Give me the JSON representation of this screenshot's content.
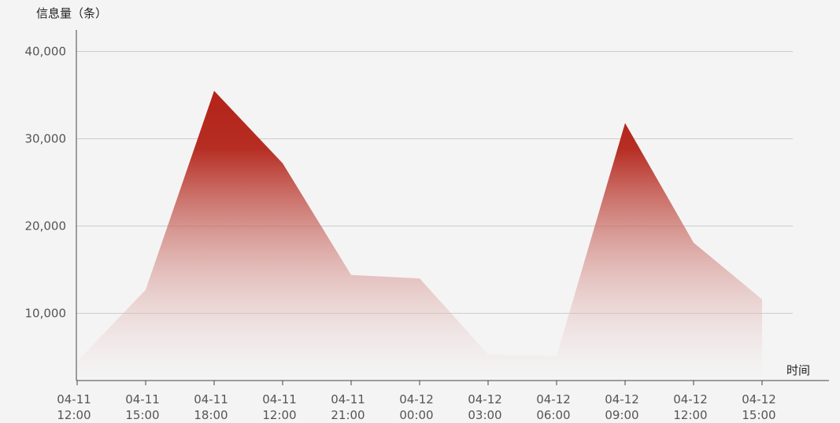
{
  "chart_data": {
    "type": "area",
    "title": "",
    "ylabel": "信息量（条）",
    "xlabel": "时间",
    "categories": [
      [
        "04-11",
        "12:00"
      ],
      [
        "04-11",
        "15:00"
      ],
      [
        "04-11",
        "18:00"
      ],
      [
        "04-11",
        "12:00"
      ],
      [
        "04-11",
        "21:00"
      ],
      [
        "04-12",
        "00:00"
      ],
      [
        "04-12",
        "03:00"
      ],
      [
        "04-12",
        "06:00"
      ],
      [
        "04-12",
        "09:00"
      ],
      [
        "04-12",
        "12:00"
      ],
      [
        "04-12",
        "15:00"
      ]
    ],
    "series": [
      {
        "values": [
          4500,
          12700,
          35500,
          27200,
          14400,
          14000,
          5300,
          5100,
          31800,
          18100,
          11600
        ]
      }
    ],
    "ylim": [
      2300,
      42300
    ],
    "yticks": [
      10000,
      20000,
      30000,
      40000
    ],
    "ytick_labels": [
      "10,000",
      "20,000",
      "30,000",
      "40,000"
    ],
    "grid": true,
    "legend": "none",
    "colors": {
      "fill_top": "#b32318",
      "fill_bottom": "#f4f4f4",
      "grid": "#cccccc",
      "axis": "#444444"
    }
  }
}
